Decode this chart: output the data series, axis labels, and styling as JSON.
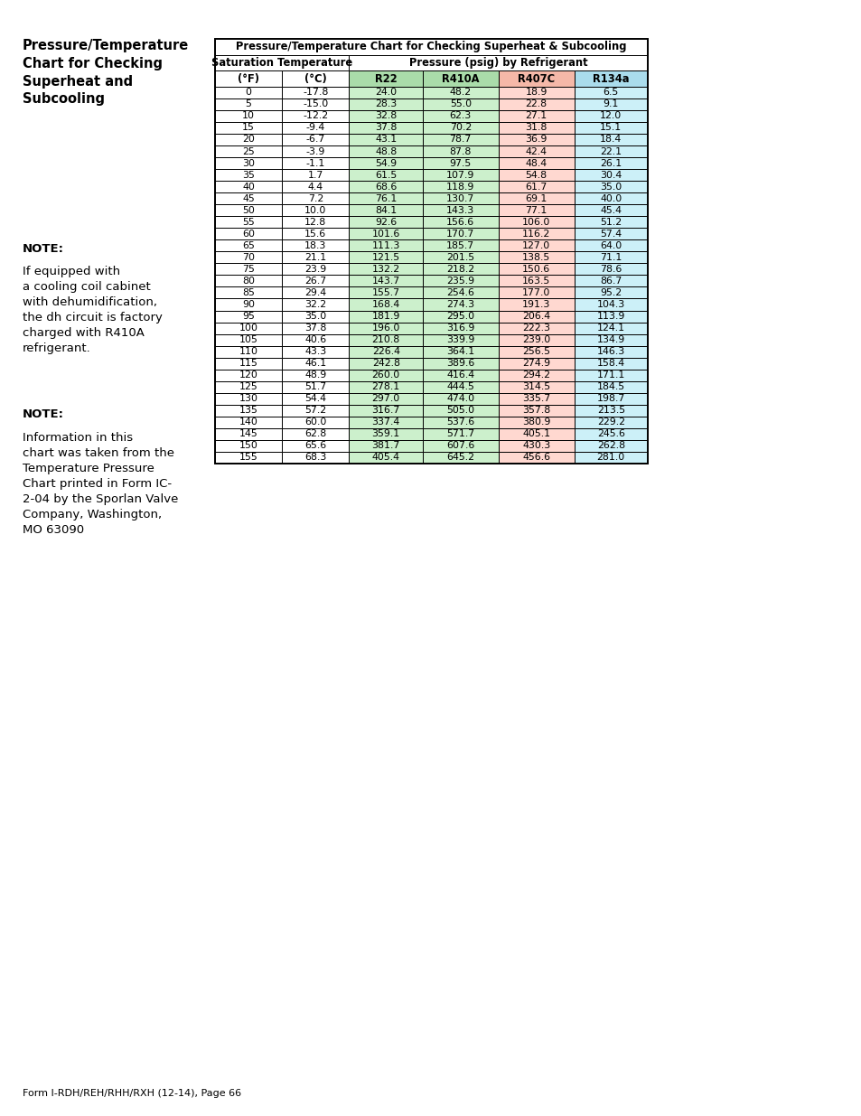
{
  "title": "Pressure/Temperature Chart for Checking Superheat & Subcooling",
  "left_title": "Pressure/Temperature\nChart for Checking\nSuperheat and\nSubcooling",
  "note1_bold": "NOTE:",
  "note1_text": " If equipped with\na cooling coil cabinet\nwith dehumidification,\nthe dh circuit is factory\ncharged with R410A\nrefrigerant.",
  "note2_bold": "NOTE:",
  "note2_text": " Information in this\nchart was taken from the\nTemperature Pressure\nChart printed in Form IC-\n2-04 by the Sporlan Valve\nCompany, Washington,\nMO 63090",
  "footer": "Form I-RDH/REH/RHH/RXH (12-14), Page 66",
  "header1_sat": "Saturation Temperature",
  "header1_pres": "Pressure (psig) by Refrigerant",
  "col_headers": [
    "°F",
    "°C",
    "R22",
    "R410A",
    "R407C",
    "R134a"
  ],
  "col_header_parens": [
    "(°F)",
    "(°C)",
    "R22",
    "R410A",
    "R407C",
    "R134a"
  ],
  "data": [
    [
      0,
      -17.8,
      24.0,
      48.2,
      18.9,
      6.5
    ],
    [
      5,
      -15.0,
      28.3,
      55.0,
      22.8,
      9.1
    ],
    [
      10,
      -12.2,
      32.8,
      62.3,
      27.1,
      12.0
    ],
    [
      15,
      -9.4,
      37.8,
      70.2,
      31.8,
      15.1
    ],
    [
      20,
      -6.7,
      43.1,
      78.7,
      36.9,
      18.4
    ],
    [
      25,
      -3.9,
      48.8,
      87.8,
      42.4,
      22.1
    ],
    [
      30,
      -1.1,
      54.9,
      97.5,
      48.4,
      26.1
    ],
    [
      35,
      1.7,
      61.5,
      107.9,
      54.8,
      30.4
    ],
    [
      40,
      4.4,
      68.6,
      118.9,
      61.7,
      35.0
    ],
    [
      45,
      7.2,
      76.1,
      130.7,
      69.1,
      40.0
    ],
    [
      50,
      10.0,
      84.1,
      143.3,
      77.1,
      45.4
    ],
    [
      55,
      12.8,
      92.6,
      156.6,
      106.0,
      51.2
    ],
    [
      60,
      15.6,
      101.6,
      170.7,
      116.2,
      57.4
    ],
    [
      65,
      18.3,
      111.3,
      185.7,
      127.0,
      64.0
    ],
    [
      70,
      21.1,
      121.5,
      201.5,
      138.5,
      71.1
    ],
    [
      75,
      23.9,
      132.2,
      218.2,
      150.6,
      78.6
    ],
    [
      80,
      26.7,
      143.7,
      235.9,
      163.5,
      86.7
    ],
    [
      85,
      29.4,
      155.7,
      254.6,
      177.0,
      95.2
    ],
    [
      90,
      32.2,
      168.4,
      274.3,
      191.3,
      104.3
    ],
    [
      95,
      35.0,
      181.9,
      295.0,
      206.4,
      113.9
    ],
    [
      100,
      37.8,
      196.0,
      316.9,
      222.3,
      124.1
    ],
    [
      105,
      40.6,
      210.8,
      339.9,
      239.0,
      134.9
    ],
    [
      110,
      43.3,
      226.4,
      364.1,
      256.5,
      146.3
    ],
    [
      115,
      46.1,
      242.8,
      389.6,
      274.9,
      158.4
    ],
    [
      120,
      48.9,
      260.0,
      416.4,
      294.2,
      171.1
    ],
    [
      125,
      51.7,
      278.1,
      444.5,
      314.5,
      184.5
    ],
    [
      130,
      54.4,
      297.0,
      474.0,
      335.7,
      198.7
    ],
    [
      135,
      57.2,
      316.7,
      505.0,
      357.8,
      213.5
    ],
    [
      140,
      60.0,
      337.4,
      537.6,
      380.9,
      229.2
    ],
    [
      145,
      62.8,
      359.1,
      571.7,
      405.1,
      245.6
    ],
    [
      150,
      65.6,
      381.7,
      607.6,
      430.3,
      262.8
    ],
    [
      155,
      68.3,
      405.4,
      645.2,
      456.6,
      281.0
    ]
  ],
  "border_color": "#000000",
  "data_col_colors": [
    "white",
    "white",
    "#ccf0cc",
    "#ccf0cc",
    "#ffd8d0",
    "#ccf0f8"
  ],
  "col_header_colors": [
    "white",
    "white",
    "#aadcaa",
    "#aadcaa",
    "#f5b8a8",
    "#aadcec"
  ]
}
